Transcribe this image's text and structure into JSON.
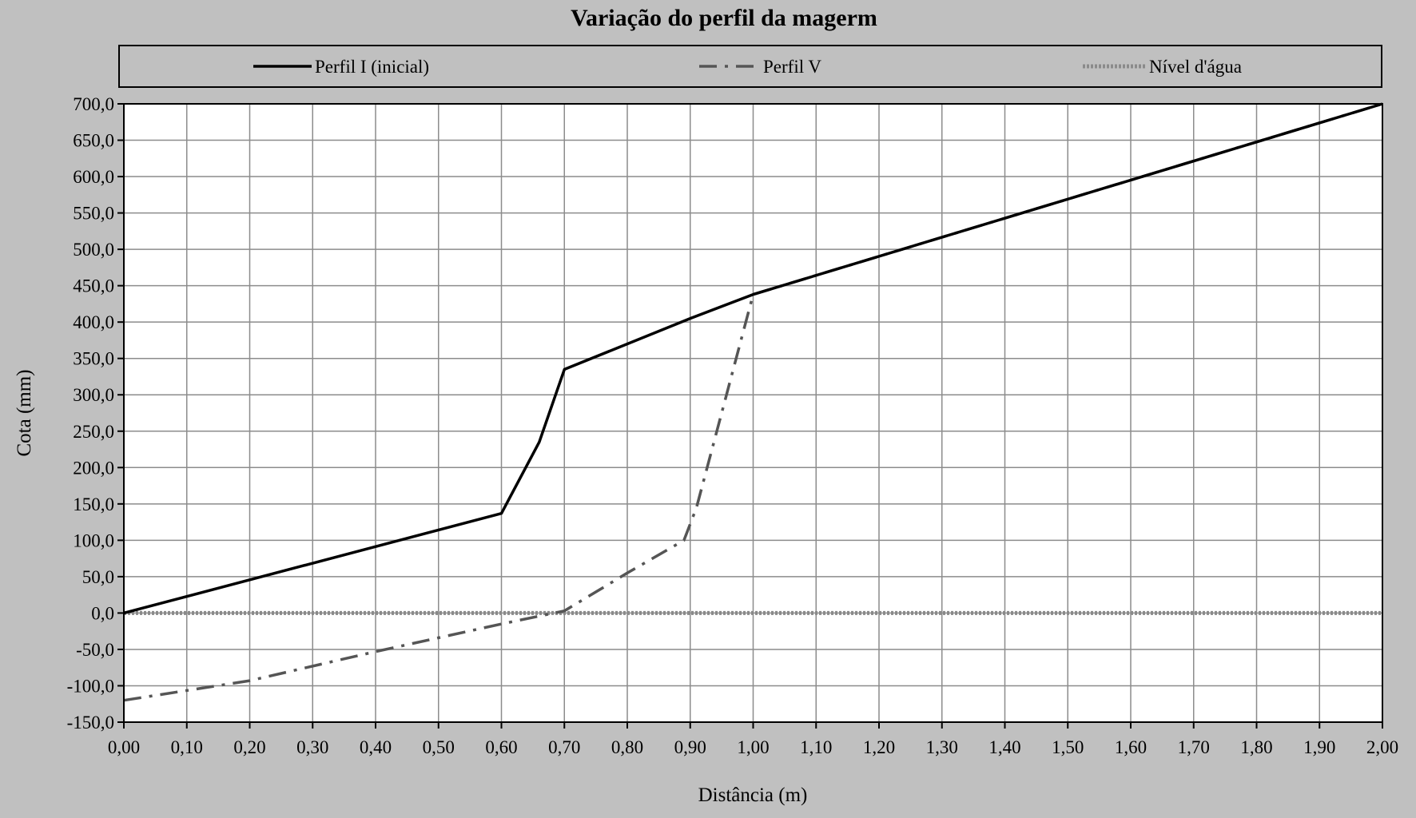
{
  "chart_data": {
    "type": "line",
    "title": "Variação do perfil da magerm",
    "xlabel": "Distância (m)",
    "ylabel": "Cota (mm)",
    "xlim": [
      0,
      2
    ],
    "ylim": [
      -150,
      700
    ],
    "x_ticks": [
      "0,00",
      "0,10",
      "0,20",
      "0,30",
      "0,40",
      "0,50",
      "0,60",
      "0,70",
      "0,80",
      "0,90",
      "1,00",
      "1,10",
      "1,20",
      "1,30",
      "1,40",
      "1,50",
      "1,60",
      "1,70",
      "1,80",
      "1,90",
      "2,00"
    ],
    "y_ticks": [
      "700,0",
      "650,0",
      "600,0",
      "550,0",
      "500,0",
      "450,0",
      "400,0",
      "350,0",
      "300,0",
      "250,0",
      "200,0",
      "150,0",
      "100,0",
      "50,0",
      "0,0",
      "-50,0",
      "-100,0",
      "-150,0"
    ],
    "grid": true,
    "legend_position": "top",
    "background_color": "#c0c0c0",
    "plot_background": "#ffffff",
    "series": [
      {
        "name": "Perfil I (inicial)",
        "style": "solid",
        "color": "#000000",
        "points": [
          [
            0.0,
            0
          ],
          [
            0.6,
            137
          ],
          [
            0.66,
            235
          ],
          [
            0.7,
            335
          ],
          [
            0.9,
            405
          ],
          [
            1.0,
            438
          ],
          [
            2.0,
            700
          ]
        ]
      },
      {
        "name": "Perfil V",
        "style": "dashdot",
        "color": "#555555",
        "points": [
          [
            0.0,
            -120
          ],
          [
            0.2,
            -93
          ],
          [
            0.4,
            -53
          ],
          [
            0.6,
            -15
          ],
          [
            0.7,
            3
          ],
          [
            0.8,
            55
          ],
          [
            0.89,
            100
          ],
          [
            0.91,
            145
          ],
          [
            0.95,
            275
          ],
          [
            1.0,
            438
          ],
          [
            2.0,
            700
          ]
        ]
      },
      {
        "name": "Nível d'água",
        "style": "dotted",
        "color": "#8a8a8a",
        "points": [
          [
            0.0,
            0
          ],
          [
            2.0,
            0
          ]
        ]
      }
    ]
  }
}
